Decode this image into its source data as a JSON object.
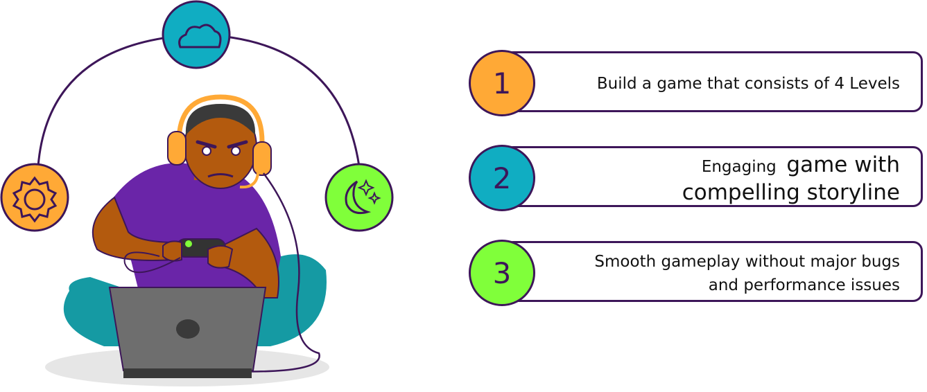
{
  "colors": {
    "outline": "#3d1659",
    "orange": "#ffa936",
    "teal": "#10adc2",
    "green": "#80ff3a",
    "purple": "#6a25a8",
    "skin": "#b35a0e",
    "laptop": "#6e6e6e",
    "legs": "#159aa3"
  },
  "icons": [
    "sun-icon",
    "cloud-icon",
    "moon-stars-icon"
  ],
  "goals": [
    {
      "number": "1",
      "lines": [
        "Build a game that consists of 4 Levels"
      ]
    },
    {
      "number": "2",
      "lead": "Engaging",
      "lines": [
        "game with",
        "compelling storyline"
      ]
    },
    {
      "number": "3",
      "lines": [
        "Smooth gameplay without major bugs",
        "and performance issues"
      ]
    }
  ]
}
